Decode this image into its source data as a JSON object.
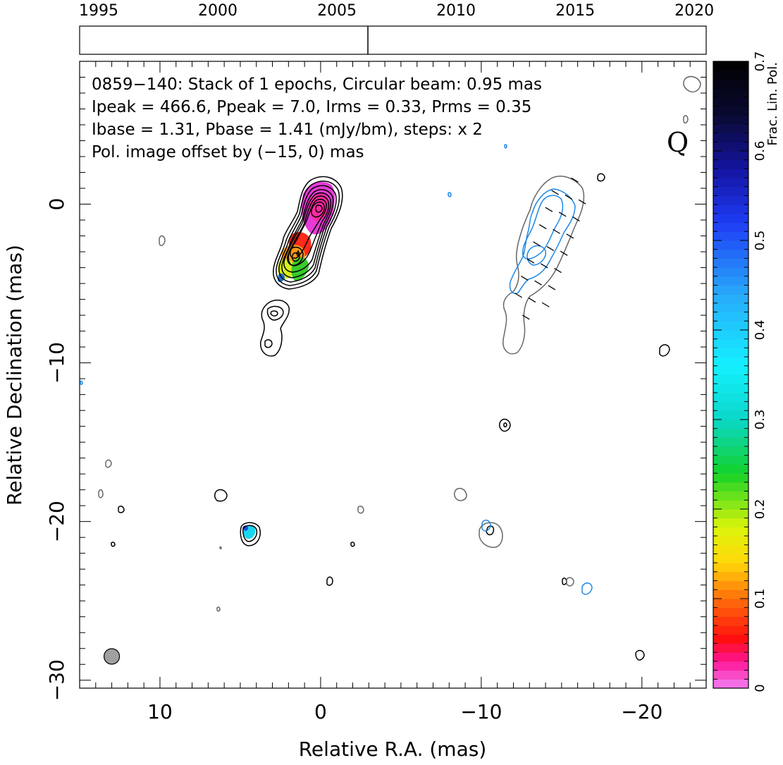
{
  "chart_data": {
    "type": "contour",
    "source": "0859−140",
    "band_label": "Q",
    "header_lines": [
      "0859−140: Stack of 1 epochs, Circular beam: 0.95 mas",
      "Ipeak = 466.6, Ppeak = 7.0, Irms = 0.33, Prms = 0.35",
      "Ibase = 1.31, Pbase = 1.41 (mJy/bm), steps: x 2"
    ],
    "offset_note": "Pol. image offset by (−15, 0) mas",
    "offset_color": "#1e88e5",
    "xlabel": "Relative R.A. (mas)",
    "ylabel": "Relative Declination (mas)",
    "xlim": [
      15,
      -24
    ],
    "ylim": [
      -30.5,
      9
    ],
    "x_ticks": [
      10,
      0,
      -10,
      -20
    ],
    "x_tick_labels": [
      "10",
      "0",
      "−10",
      "−20"
    ],
    "y_ticks": [
      0,
      -10,
      -20,
      -30
    ],
    "y_tick_labels": [
      "0",
      "−10",
      "−20",
      "−30"
    ],
    "timeline": {
      "years": [
        1995,
        2000,
        2005,
        2010,
        2015,
        2020
      ],
      "year_range": [
        1994.2,
        2020.5
      ],
      "epochs": [
        2006.3
      ]
    },
    "colorbar": {
      "label": "Frac. Lin. Pol.",
      "min": 0,
      "max": 0.7,
      "ticks": [
        0,
        0.1,
        0.2,
        0.3,
        0.4,
        0.5,
        0.6,
        0.7
      ],
      "tick_labels": [
        "0",
        "0.1",
        "0.2",
        "0.3",
        "0.4",
        "0.5",
        "0.6",
        "0.7"
      ]
    },
    "beam": {
      "x": 13,
      "y": -28.5,
      "diameter_mas": 0.95,
      "color": "#a0a0a0"
    },
    "stokes_i_peaks": [
      {
        "x": 0,
        "y": 0,
        "frac_pol": 0.02
      },
      {
        "x": 1.4,
        "y": -3.6,
        "frac_pol": 0.15
      }
    ],
    "pol_core_center": {
      "x": -14.3,
      "y": -2.8
    },
    "isolated_components": [
      {
        "x": 2.8,
        "y": -7.5
      },
      {
        "x": 4.3,
        "y": -20.6
      },
      {
        "x": 6.2,
        "y": -18.2
      },
      {
        "x": -11.7,
        "y": -13.6
      },
      {
        "x": -21.6,
        "y": -8.9
      },
      {
        "x": -20.1,
        "y": -28.1
      },
      {
        "x": -0.6,
        "y": -23.5
      },
      {
        "x": -17.6,
        "y": 1.8
      },
      {
        "x": -10.7,
        "y": -20.5
      },
      {
        "x": -8.9,
        "y": -18.3
      },
      {
        "x": -16.7,
        "y": -23.7
      },
      {
        "x": -15.2,
        "y": -23.6
      },
      {
        "x": 12.5,
        "y": -19.0
      },
      {
        "x": 13.3,
        "y": -16.2
      }
    ]
  }
}
